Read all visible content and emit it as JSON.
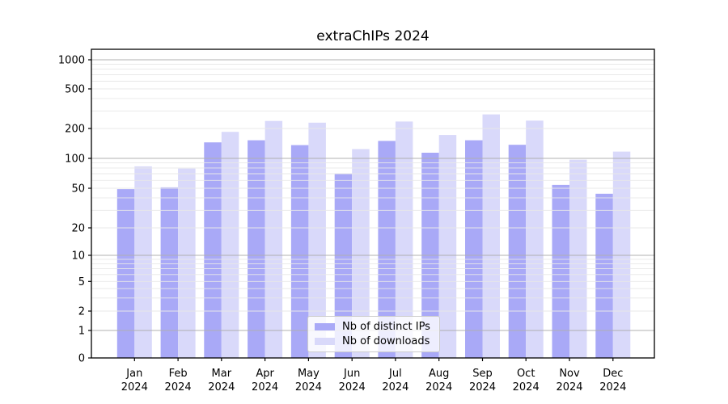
{
  "chart_data": {
    "type": "bar",
    "title": "extraChIPs 2024",
    "categories": [
      "Jan 2024",
      "Feb 2024",
      "Mar 2024",
      "Apr 2024",
      "May 2024",
      "Jun 2024",
      "Jul 2024",
      "Aug 2024",
      "Sep 2024",
      "Oct 2024",
      "Nov 2024",
      "Dec 2024"
    ],
    "x_tick_top_lines": [
      "Jan",
      "Feb",
      "Mar",
      "Apr",
      "May",
      "Jun",
      "Jul",
      "Aug",
      "Sep",
      "Oct",
      "Nov",
      "Dec"
    ],
    "x_tick_bottom_line": "2024",
    "series": [
      {
        "name": "Nb of distinct IPs",
        "color": "#a9a9f7",
        "values": [
          49,
          51,
          145,
          152,
          136,
          70,
          150,
          114,
          152,
          137,
          54,
          44
        ]
      },
      {
        "name": "Nb of downloads",
        "color": "#d9d9fa",
        "values": [
          83,
          79,
          185,
          238,
          229,
          124,
          235,
          172,
          277,
          240,
          97,
          117
        ]
      }
    ],
    "y_ticks": [
      0,
      1,
      2,
      5,
      10,
      20,
      50,
      100,
      200,
      500,
      1000
    ],
    "y_major_gridlines": [
      1,
      10,
      100,
      1000
    ],
    "y_minor_gridlines": [
      2,
      3,
      4,
      5,
      6,
      7,
      8,
      9,
      20,
      30,
      40,
      50,
      60,
      70,
      80,
      90,
      200,
      300,
      400,
      500,
      600,
      700,
      800,
      900
    ],
    "y_scale": "log",
    "ylim": [
      0,
      1000
    ],
    "xlabel": "",
    "ylabel": "",
    "grid": true,
    "legend_position": "lower center",
    "colors": {
      "major_grid": "#b0b0b0",
      "minor_grid": "#e8e8e8",
      "axis": "#000000",
      "text": "#000000",
      "background": "#ffffff"
    }
  }
}
